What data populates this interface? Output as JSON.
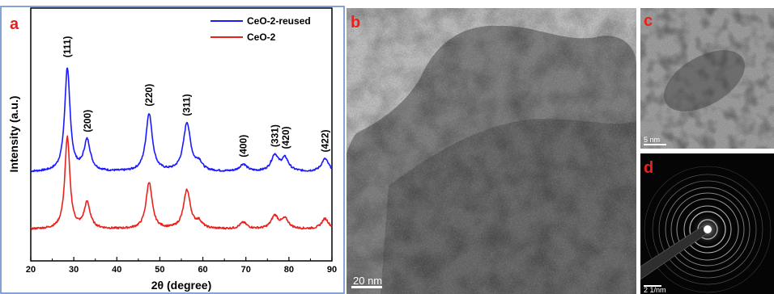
{
  "panels": {
    "a": "a",
    "b": "b",
    "c": "c",
    "d": "d"
  },
  "scale_bars": {
    "b": "20 nm",
    "c": "5 nm",
    "d": "2 1/nm"
  },
  "chart_data": {
    "type": "line",
    "xlabel": "2θ (degree)",
    "ylabel": "Intensity (a.u.)",
    "xlim": [
      20,
      90
    ],
    "xticks": [
      20,
      30,
      40,
      50,
      60,
      70,
      80,
      90
    ],
    "grid": false,
    "legend_position": "top-right",
    "series": [
      {
        "name": "CeO-2-reused",
        "color": "#1a1aff",
        "baseline": 0.28,
        "peaks": [
          {
            "x": 28.5,
            "height": 0.64,
            "width": 0.75
          },
          {
            "x": 33.1,
            "height": 0.19,
            "width": 0.9
          },
          {
            "x": 47.5,
            "height": 0.36,
            "width": 0.9
          },
          {
            "x": 56.3,
            "height": 0.3,
            "width": 1.0
          },
          {
            "x": 59.1,
            "height": 0.05,
            "width": 0.9
          },
          {
            "x": 69.4,
            "height": 0.045,
            "width": 1.0
          },
          {
            "x": 76.7,
            "height": 0.1,
            "width": 1.0
          },
          {
            "x": 79.1,
            "height": 0.08,
            "width": 1.0
          },
          {
            "x": 88.4,
            "height": 0.08,
            "width": 1.0
          }
        ]
      },
      {
        "name": "CeO-2",
        "color": "#e8211c",
        "baseline": 0.0,
        "peaks": [
          {
            "x": 28.5,
            "height": 0.57,
            "width": 0.7
          },
          {
            "x": 33.1,
            "height": 0.16,
            "width": 0.85
          },
          {
            "x": 47.5,
            "height": 0.29,
            "width": 0.85
          },
          {
            "x": 56.3,
            "height": 0.24,
            "width": 0.95
          },
          {
            "x": 59.1,
            "height": 0.04,
            "width": 0.9
          },
          {
            "x": 69.4,
            "height": 0.04,
            "width": 1.0
          },
          {
            "x": 76.7,
            "height": 0.08,
            "width": 1.0
          },
          {
            "x": 79.1,
            "height": 0.06,
            "width": 1.0
          },
          {
            "x": 88.4,
            "height": 0.065,
            "width": 1.0
          }
        ]
      }
    ],
    "peak_labels": [
      {
        "text": "(111)",
        "x": 28.5
      },
      {
        "text": "(200)",
        "x": 33.2
      },
      {
        "text": "(220)",
        "x": 47.5
      },
      {
        "text": "(311)",
        "x": 56.2
      },
      {
        "text": "(400)",
        "x": 69.4
      },
      {
        "text": "(331)",
        "x": 76.7
      },
      {
        "text": "(420)",
        "x": 79.3
      },
      {
        "text": "(422)",
        "x": 88.4
      }
    ]
  }
}
